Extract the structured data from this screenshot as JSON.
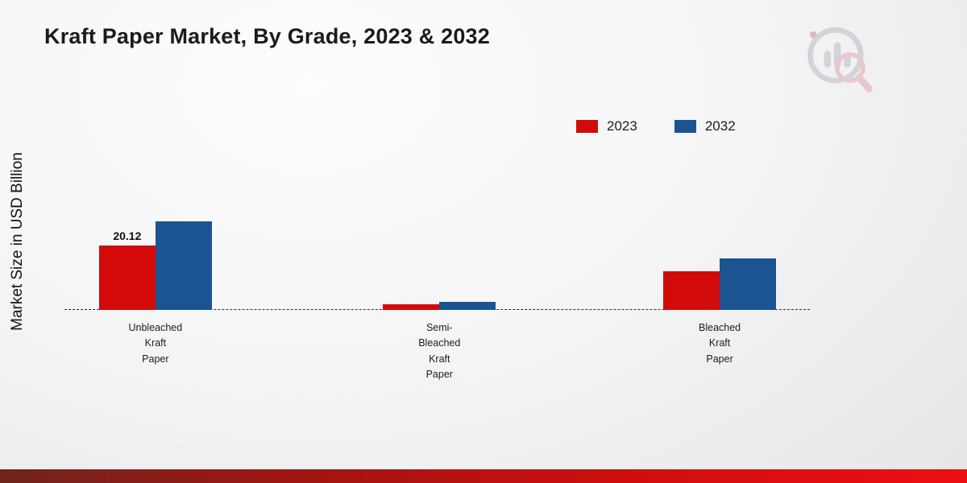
{
  "chart_data": {
    "type": "bar",
    "title": "Kraft Paper Market, By Grade, 2023 & 2032",
    "ylabel": "Market Size in USD Billion",
    "xlabel": "",
    "categories": [
      "Unbleached Kraft Paper",
      "Semi-Bleached Kraft Paper",
      "Bleached Kraft Paper"
    ],
    "series": [
      {
        "name": "2023",
        "color": "#d20a0a",
        "values": [
          20.12,
          1.8,
          12.1
        ]
      },
      {
        "name": "2032",
        "color": "#1c5492",
        "values": [
          27.5,
          2.4,
          16.1
        ]
      }
    ],
    "ylim": [
      0,
      30
    ],
    "grid": false,
    "baseline_style": "dashed",
    "legend_position": "top-right",
    "annotations": [
      {
        "series_index": 0,
        "category_index": 0,
        "text": "20.12"
      }
    ]
  },
  "accents": {
    "bottom_bar_gradient_left": "#6f241c",
    "bottom_bar_gradient_right": "#ee0f12",
    "background_edge": "#e5e5e8"
  }
}
